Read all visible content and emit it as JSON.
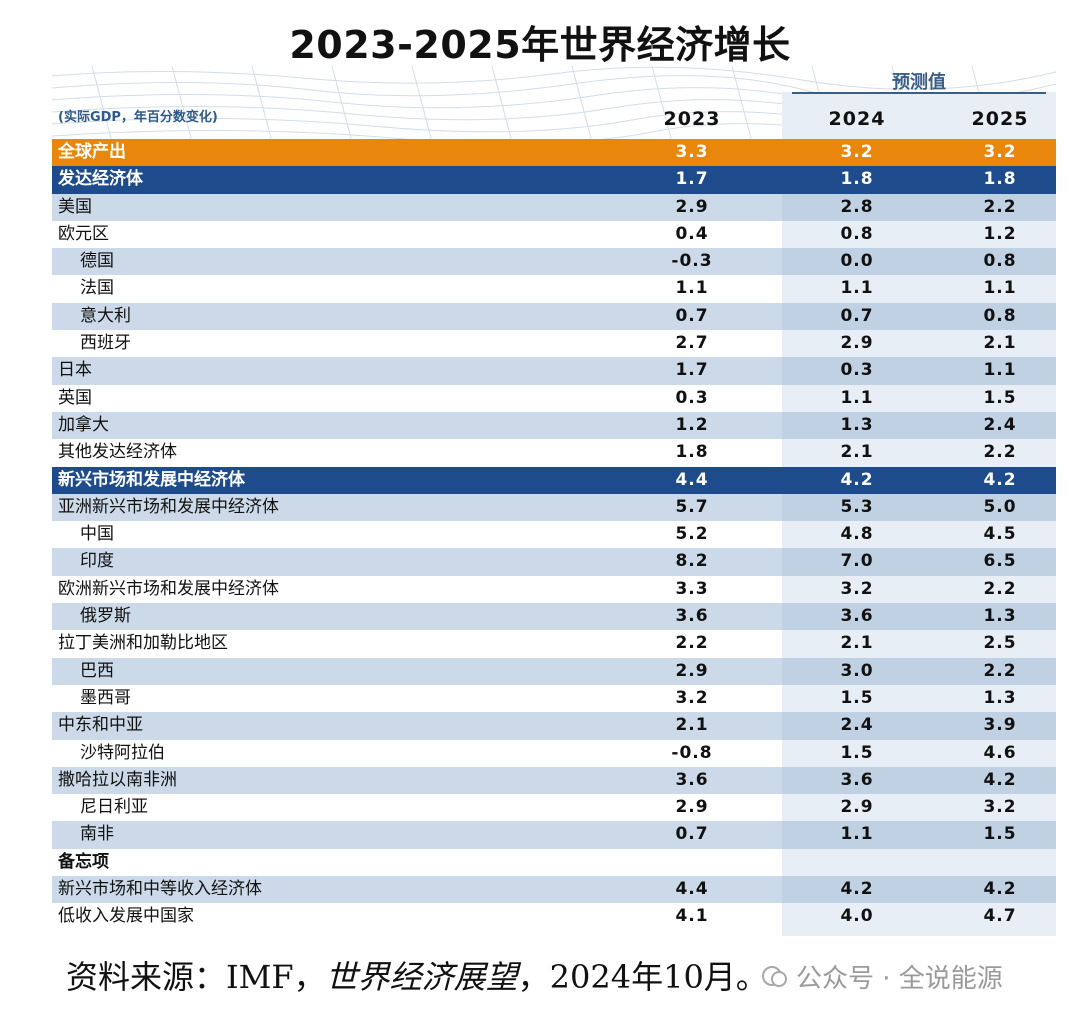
{
  "title": "2023-2025年世界经济增长",
  "table": {
    "forecast_label": "预测值",
    "unit_note": "(实际GDP，年百分数变化)",
    "years": [
      "2023",
      "2024",
      "2025"
    ],
    "rows": [
      {
        "name": "全球产出",
        "indent": 0,
        "style": "world",
        "v": [
          "3.3",
          "3.2",
          "3.2"
        ]
      },
      {
        "name": "发达经济体",
        "indent": 0,
        "style": "group",
        "v": [
          "1.7",
          "1.8",
          "1.8"
        ]
      },
      {
        "name": "美国",
        "indent": 0,
        "style": "alt",
        "v": [
          "2.9",
          "2.8",
          "2.2"
        ]
      },
      {
        "name": "欧元区",
        "indent": 0,
        "style": "plain",
        "v": [
          "0.4",
          "0.8",
          "1.2"
        ]
      },
      {
        "name": "德国",
        "indent": 1,
        "style": "alt",
        "v": [
          "-0.3",
          "0.0",
          "0.8"
        ]
      },
      {
        "name": "法国",
        "indent": 1,
        "style": "plain",
        "v": [
          "1.1",
          "1.1",
          "1.1"
        ]
      },
      {
        "name": "意大利",
        "indent": 1,
        "style": "alt",
        "v": [
          "0.7",
          "0.7",
          "0.8"
        ]
      },
      {
        "name": "西班牙",
        "indent": 1,
        "style": "plain",
        "v": [
          "2.7",
          "2.9",
          "2.1"
        ]
      },
      {
        "name": "日本",
        "indent": 0,
        "style": "alt",
        "v": [
          "1.7",
          "0.3",
          "1.1"
        ]
      },
      {
        "name": "英国",
        "indent": 0,
        "style": "plain",
        "v": [
          "0.3",
          "1.1",
          "1.5"
        ]
      },
      {
        "name": "加拿大",
        "indent": 0,
        "style": "alt",
        "v": [
          "1.2",
          "1.3",
          "2.4"
        ]
      },
      {
        "name": "其他发达经济体",
        "indent": 0,
        "style": "plain",
        "v": [
          "1.8",
          "2.1",
          "2.2"
        ]
      },
      {
        "name": "新兴市场和发展中经济体",
        "indent": 0,
        "style": "group",
        "v": [
          "4.4",
          "4.2",
          "4.2"
        ]
      },
      {
        "name": "亚洲新兴市场和发展中经济体",
        "indent": 0,
        "style": "alt",
        "v": [
          "5.7",
          "5.3",
          "5.0"
        ]
      },
      {
        "name": "中国",
        "indent": 1,
        "style": "plain",
        "v": [
          "5.2",
          "4.8",
          "4.5"
        ]
      },
      {
        "name": "印度",
        "indent": 1,
        "style": "alt",
        "v": [
          "8.2",
          "7.0",
          "6.5"
        ]
      },
      {
        "name": "欧洲新兴市场和发展中经济体",
        "indent": 0,
        "style": "plain",
        "v": [
          "3.3",
          "3.2",
          "2.2"
        ]
      },
      {
        "name": "俄罗斯",
        "indent": 1,
        "style": "alt",
        "v": [
          "3.6",
          "3.6",
          "1.3"
        ]
      },
      {
        "name": "拉丁美洲和加勒比地区",
        "indent": 0,
        "style": "plain",
        "v": [
          "2.2",
          "2.1",
          "2.5"
        ]
      },
      {
        "name": "巴西",
        "indent": 1,
        "style": "alt",
        "v": [
          "2.9",
          "3.0",
          "2.2"
        ]
      },
      {
        "name": "墨西哥",
        "indent": 1,
        "style": "plain",
        "v": [
          "3.2",
          "1.5",
          "1.3"
        ]
      },
      {
        "name": "中东和中亚",
        "indent": 0,
        "style": "alt",
        "v": [
          "2.1",
          "2.4",
          "3.9"
        ]
      },
      {
        "name": "沙特阿拉伯",
        "indent": 1,
        "style": "plain",
        "v": [
          "-0.8",
          "1.5",
          "4.6"
        ]
      },
      {
        "name": "撒哈拉以南非洲",
        "indent": 0,
        "style": "alt",
        "v": [
          "3.6",
          "3.6",
          "4.2"
        ]
      },
      {
        "name": "尼日利亚",
        "indent": 1,
        "style": "plain",
        "v": [
          "2.9",
          "2.9",
          "3.2"
        ]
      },
      {
        "name": "南非",
        "indent": 1,
        "style": "alt",
        "v": [
          "0.7",
          "1.1",
          "1.5"
        ]
      },
      {
        "name": "备忘项",
        "indent": 0,
        "style": "memo",
        "v": [
          "",
          "",
          ""
        ]
      },
      {
        "name": "新兴市场和中等收入经济体",
        "indent": 0,
        "style": "alt",
        "v": [
          "4.4",
          "4.2",
          "4.2"
        ]
      },
      {
        "name": "低收入发展中国家",
        "indent": 0,
        "style": "plain",
        "v": [
          "4.1",
          "4.0",
          "4.7"
        ]
      }
    ]
  },
  "source": {
    "prefix": "资料来源：IMF，",
    "publication": "世界经济展望",
    "suffix": "，2024年10月。"
  },
  "watermark": "公众号 · 全说能源",
  "colors": {
    "world_row": "#e9860c",
    "group_row": "#1d4b8c",
    "alt_row": "#bccde2",
    "forecast_bg": "#e8eef5",
    "header_blue": "#2c5a8a"
  }
}
